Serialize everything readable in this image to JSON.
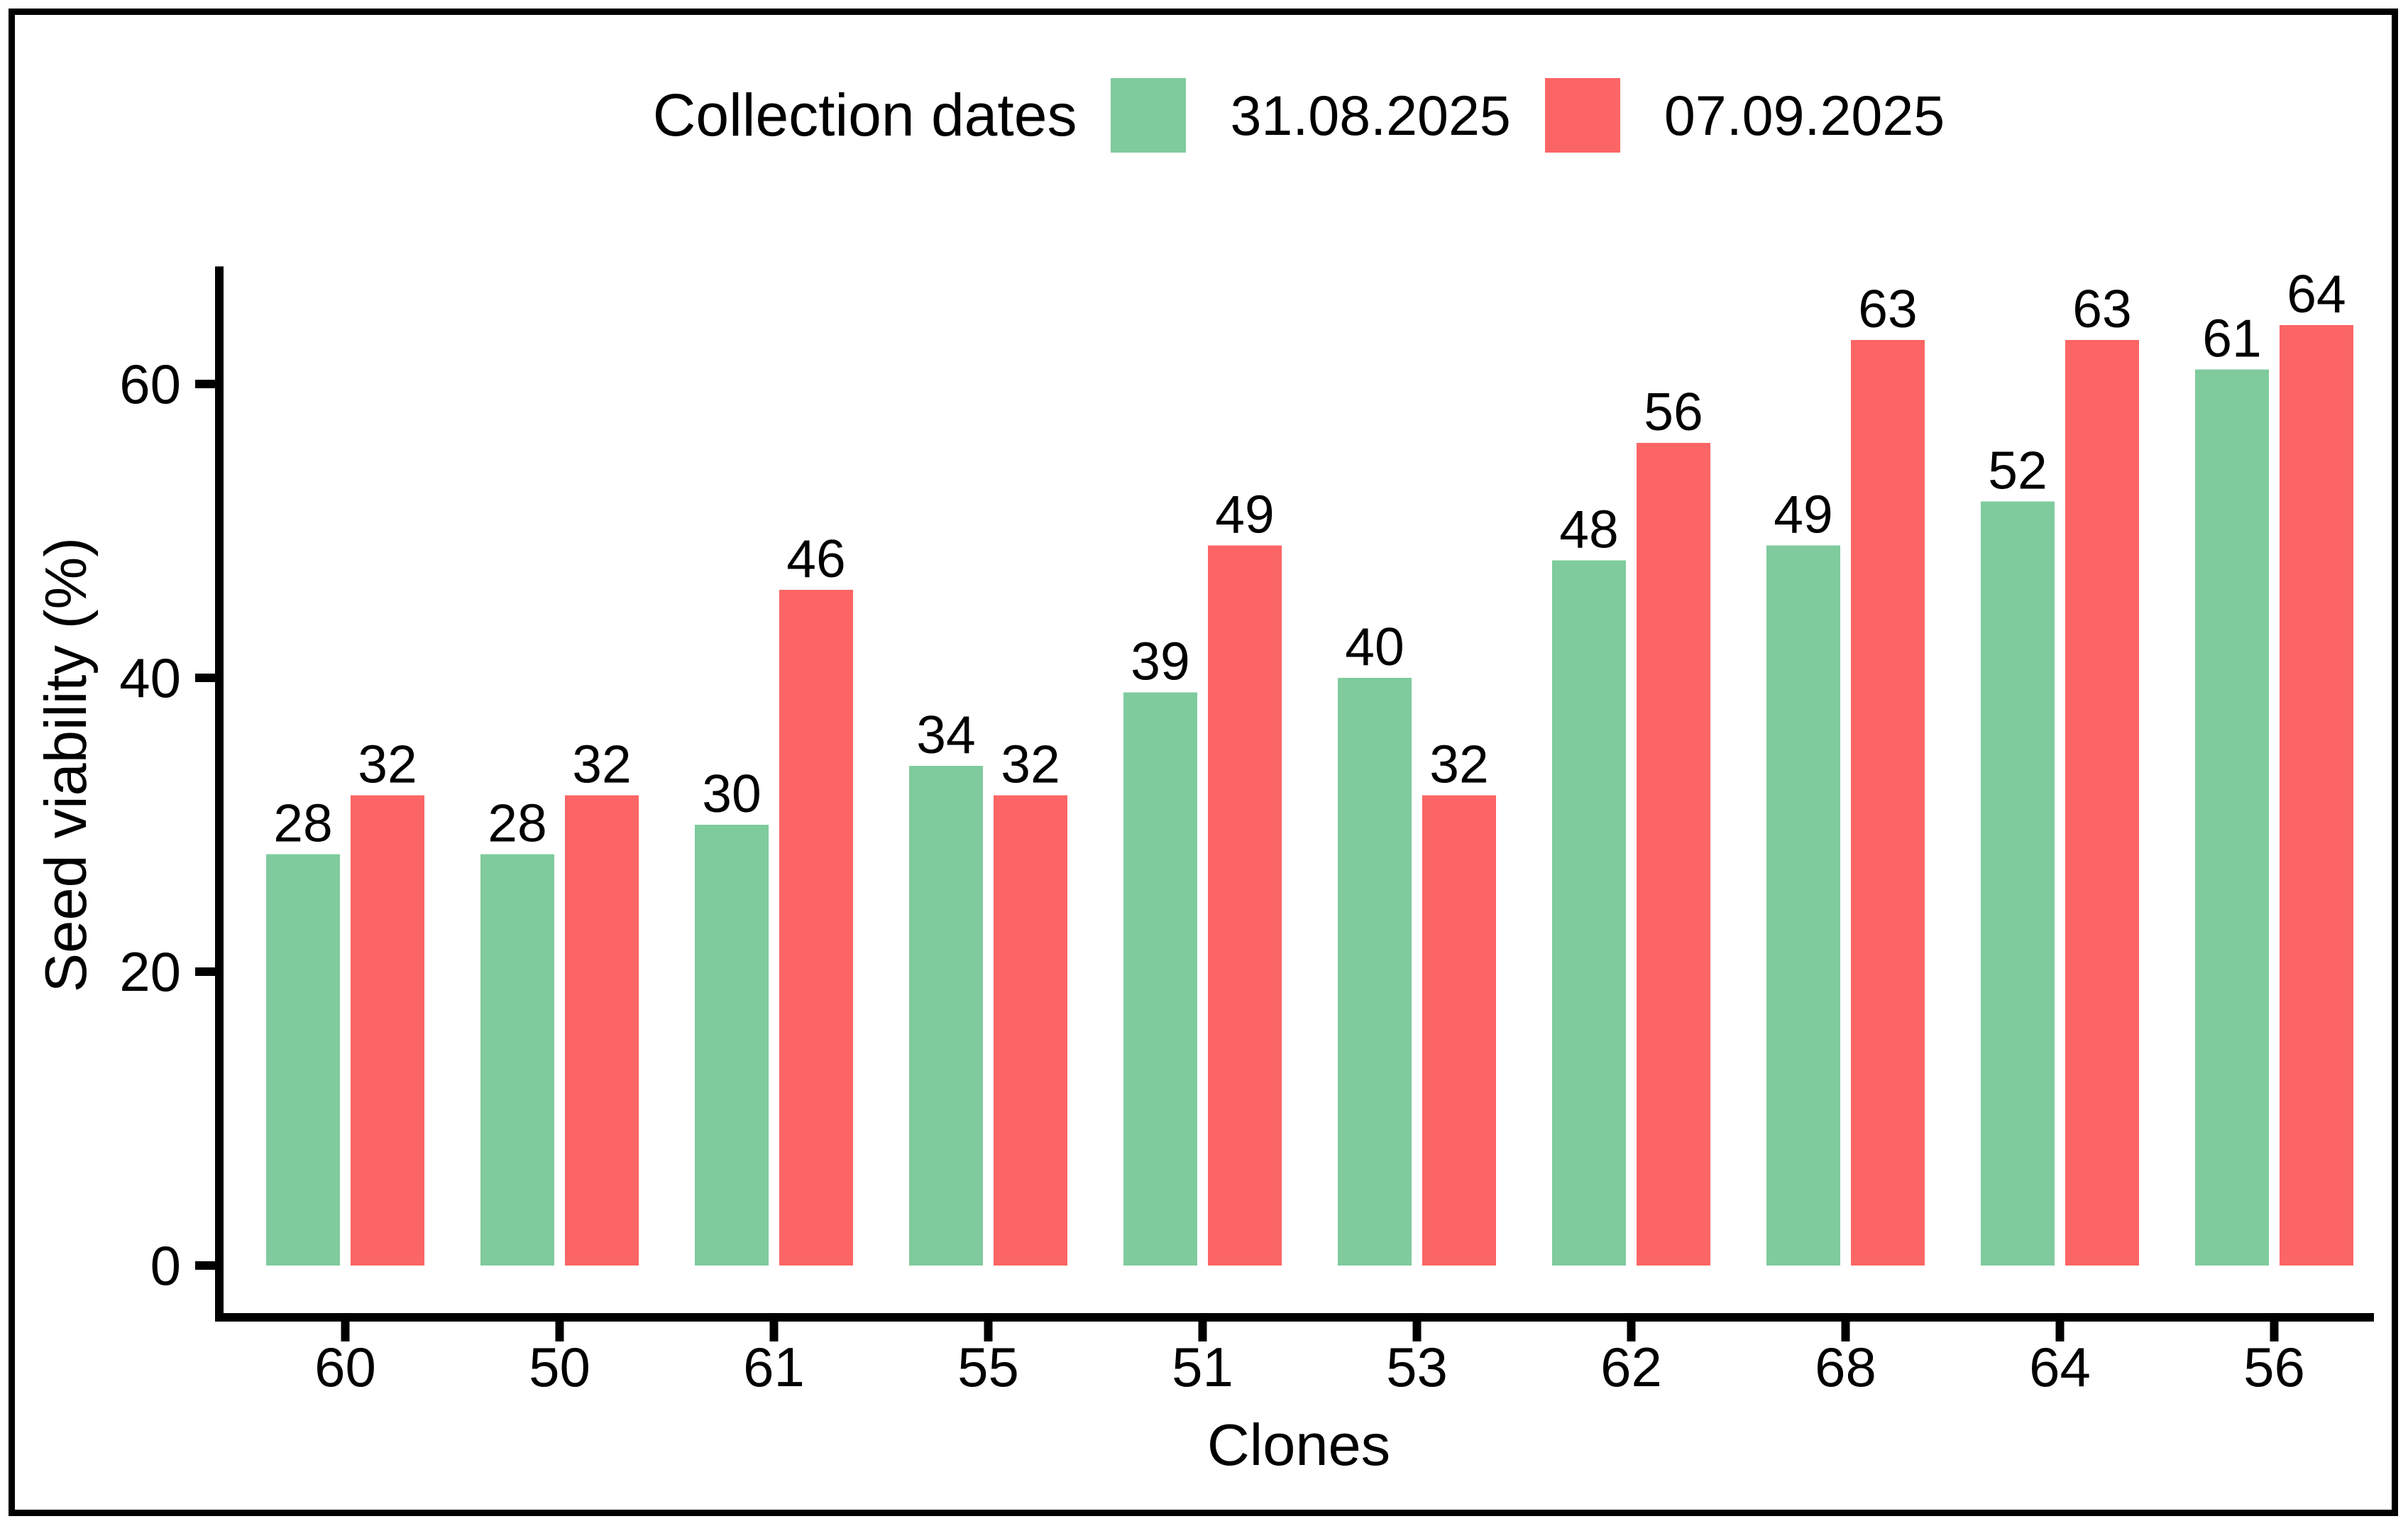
{
  "figure": {
    "border_color": "#000000",
    "background": "#ffffff"
  },
  "chart_data": {
    "type": "bar",
    "title": "Collection dates",
    "legend_title": "Collection dates",
    "legend_position": "top",
    "categories": [
      "60",
      "50",
      "61",
      "55",
      "51",
      "53",
      "62",
      "68",
      "64",
      "56"
    ],
    "series": [
      {
        "name": "31.08.2025",
        "color": "#7FCB9D",
        "values": [
          28,
          28,
          30,
          34,
          39,
          40,
          48,
          49,
          52,
          61
        ]
      },
      {
        "name": "07.09.2025",
        "color": "#FC6565",
        "values": [
          32,
          32,
          46,
          32,
          49,
          32,
          56,
          63,
          63,
          64
        ]
      }
    ],
    "xlabel": "Clones",
    "ylabel": "Seed viability (%)",
    "yticks": [
      0,
      20,
      40,
      60
    ],
    "ylim": [
      0,
      68
    ],
    "grid": false,
    "bar_value_labels": true,
    "axis_color": "#000000",
    "text_color": "#000000"
  }
}
